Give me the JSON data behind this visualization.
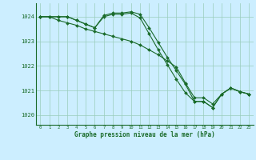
{
  "background_color": "#cceeff",
  "plot_bg_color": "#cceeff",
  "grid_color": "#99ccbb",
  "line_color": "#1a6b2a",
  "marker_color": "#1a6b2a",
  "xlabel": "Graphe pression niveau de la mer (hPa)",
  "ylim": [
    1019.6,
    1024.55
  ],
  "xlim": [
    -0.5,
    23.5
  ],
  "yticks": [
    1020,
    1021,
    1022,
    1023,
    1024
  ],
  "xticks": [
    0,
    1,
    2,
    3,
    4,
    5,
    6,
    7,
    8,
    9,
    10,
    11,
    12,
    13,
    14,
    15,
    16,
    17,
    18,
    19,
    20,
    21,
    22,
    23
  ],
  "line1_x": [
    0,
    1,
    2,
    3,
    4,
    5,
    6,
    7,
    8,
    9,
    10,
    11,
    12,
    13,
    14,
    15,
    16,
    17,
    18,
    19,
    20,
    21,
    22,
    23
  ],
  "line1_y": [
    1024.0,
    1024.0,
    1024.0,
    1024.0,
    1023.85,
    1023.7,
    1023.55,
    1024.05,
    1024.15,
    1024.15,
    1024.2,
    1024.1,
    1023.55,
    1022.95,
    1022.35,
    1021.8,
    1021.25,
    1020.55,
    1020.55,
    1020.3,
    1020.85,
    1021.1,
    1020.95,
    1020.85
  ],
  "line2_x": [
    0,
    1,
    2,
    3,
    4,
    5,
    6,
    7,
    8,
    9,
    10,
    11,
    12,
    13,
    14,
    15,
    16,
    17,
    18,
    19,
    20,
    21,
    22,
    23
  ],
  "line2_y": [
    1024.0,
    1024.0,
    1024.0,
    1024.0,
    1023.85,
    1023.7,
    1023.55,
    1024.0,
    1024.1,
    1024.1,
    1024.15,
    1023.95,
    1023.3,
    1022.65,
    1022.05,
    1021.45,
    1020.9,
    1020.55,
    1020.55,
    1020.3,
    1020.85,
    1021.1,
    1020.95,
    1020.85
  ],
  "line3_x": [
    0,
    1,
    2,
    3,
    4,
    5,
    6,
    7,
    8,
    9,
    10,
    11,
    12,
    13,
    14,
    15,
    16,
    17,
    18,
    19,
    20,
    21,
    22,
    23
  ],
  "line3_y": [
    1024.0,
    1024.0,
    1023.85,
    1023.75,
    1023.65,
    1023.5,
    1023.4,
    1023.3,
    1023.2,
    1023.1,
    1023.0,
    1022.85,
    1022.65,
    1022.45,
    1022.2,
    1021.95,
    1021.3,
    1020.7,
    1020.7,
    1020.45,
    1020.85,
    1021.1,
    1020.95,
    1020.85
  ]
}
